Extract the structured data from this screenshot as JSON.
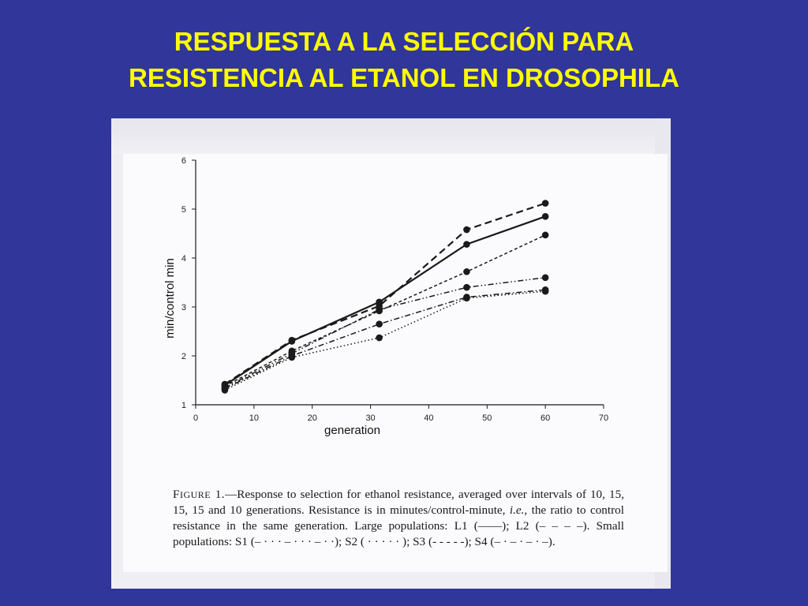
{
  "slide": {
    "title_line1": "RESPUESTA A LA SELECCIÓN PARA",
    "title_line2": "RESISTENCIA AL ETANOL EN DROSOPHILA"
  },
  "colors": {
    "background": "#31369a",
    "title": "#ffff00",
    "ink": "#1a1a1a"
  },
  "caption": {
    "figure_label_first": "F",
    "figure_label_rest": "IGURE",
    "figure_number": " 1.",
    "part1": "—Response to selection for ethanol resistance, averaged over intervals of 10, 15, 15, 15 and 10 generations. Resistance is in minutes/control-minute, ",
    "italic": "i.e.,",
    "part2": " the ratio to control resistance in the same generation. Large populations: L1 (——); L2 (– – – –). Small populations: S1 (– · · · – · · · – · ·); S2 ( · · · · · ); S3 (- - - - -); S4 (– · – · – · –)."
  },
  "chart_data": {
    "type": "line",
    "xlabel": "generation",
    "ylabel": "min/control min",
    "xlim": [
      0,
      70
    ],
    "ylim": [
      1,
      6
    ],
    "xticks": [
      0,
      10,
      20,
      30,
      40,
      50,
      60,
      70
    ],
    "yticks": [
      1,
      2,
      3,
      4,
      5,
      6
    ],
    "grid": false,
    "x": [
      5,
      16.5,
      31.5,
      46.5,
      60
    ],
    "series": [
      {
        "name": "L1",
        "dash": "solid",
        "values": [
          1.4,
          2.3,
          3.1,
          4.28,
          4.85
        ]
      },
      {
        "name": "L2",
        "dash": "dashed",
        "values": [
          1.42,
          2.32,
          3.02,
          4.58,
          5.12
        ]
      },
      {
        "name": "S1",
        "dash": "dashdotdot",
        "values": [
          1.35,
          2.05,
          2.95,
          3.4,
          3.6
        ]
      },
      {
        "name": "S2",
        "dash": "dotted",
        "values": [
          1.3,
          1.97,
          2.37,
          3.18,
          3.32
        ]
      },
      {
        "name": "S3",
        "dash": "shortdash",
        "values": [
          1.38,
          2.1,
          2.92,
          3.72,
          4.47
        ]
      },
      {
        "name": "S4",
        "dash": "dashdot",
        "values": [
          1.33,
          2.0,
          2.65,
          3.2,
          3.35
        ]
      }
    ]
  }
}
